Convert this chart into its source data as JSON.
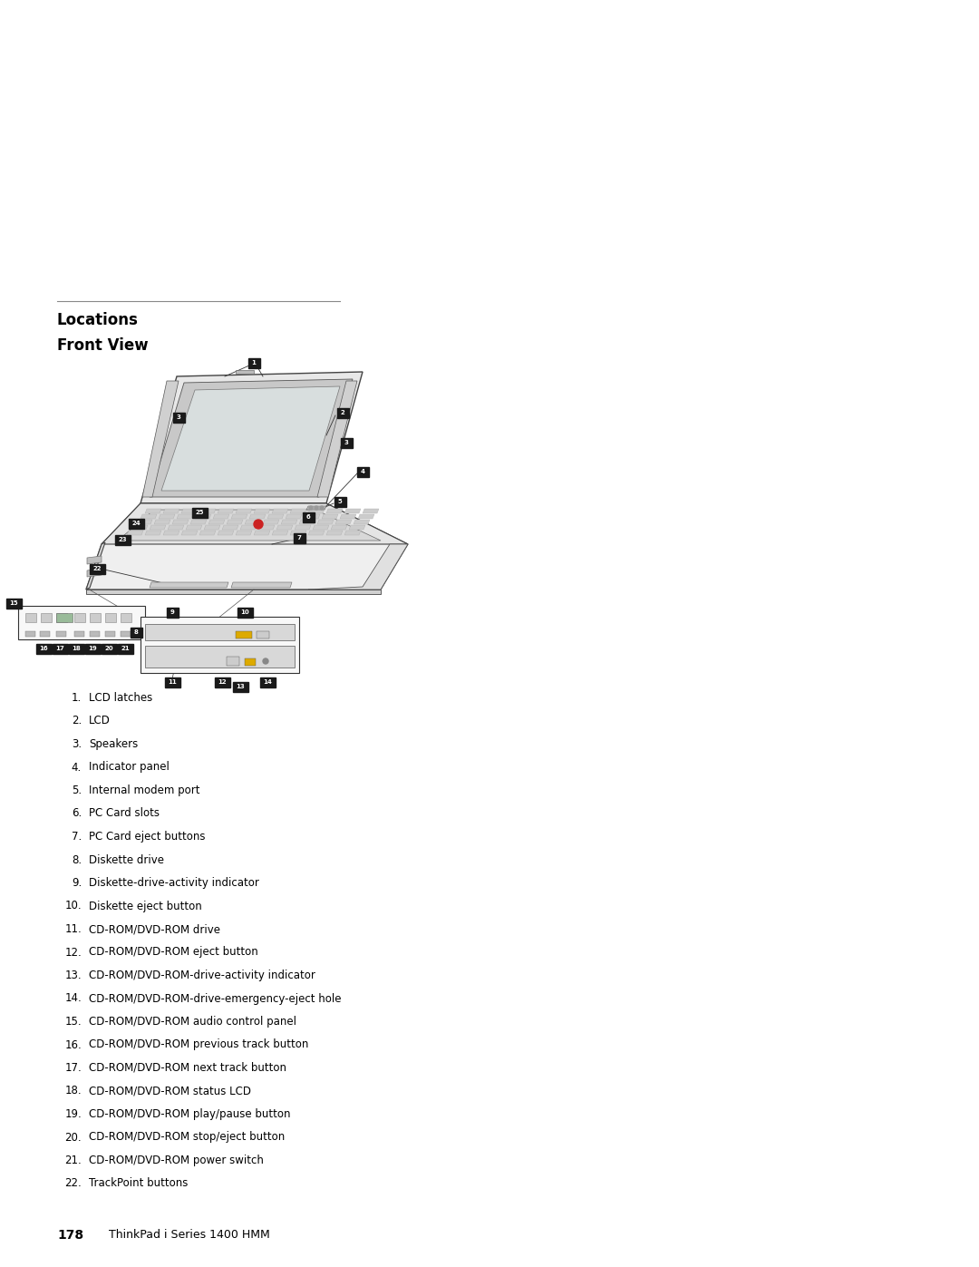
{
  "bg_color": "#ffffff",
  "page_width": 10.8,
  "page_height": 13.97,
  "locations_title": "Locations",
  "front_view_title": "Front View",
  "items": [
    {
      "num": 1,
      "text": "LCD latches"
    },
    {
      "num": 2,
      "text": "LCD"
    },
    {
      "num": 3,
      "text": "Speakers"
    },
    {
      "num": 4,
      "text": "Indicator panel"
    },
    {
      "num": 5,
      "text": "Internal modem port"
    },
    {
      "num": 6,
      "text": "PC Card slots"
    },
    {
      "num": 7,
      "text": "PC Card eject buttons"
    },
    {
      "num": 8,
      "text": "Diskette drive"
    },
    {
      "num": 9,
      "text": "Diskette-drive-activity indicator"
    },
    {
      "num": 10,
      "text": "Diskette eject button"
    },
    {
      "num": 11,
      "text": "CD-ROM/DVD-ROM drive"
    },
    {
      "num": 12,
      "text": "CD-ROM/DVD-ROM eject button"
    },
    {
      "num": 13,
      "text": "CD-ROM/DVD-ROM-drive-activity indicator"
    },
    {
      "num": 14,
      "text": "CD-ROM/DVD-ROM-drive-emergency-eject hole"
    },
    {
      "num": 15,
      "text": "CD-ROM/DVD-ROM audio control panel"
    },
    {
      "num": 16,
      "text": "CD-ROM/DVD-ROM previous track button"
    },
    {
      "num": 17,
      "text": "CD-ROM/DVD-ROM next track button"
    },
    {
      "num": 18,
      "text": "CD-ROM/DVD-ROM status LCD"
    },
    {
      "num": 19,
      "text": "CD-ROM/DVD-ROM play/pause button"
    },
    {
      "num": 20,
      "text": "CD-ROM/DVD-ROM stop/eject button"
    },
    {
      "num": 21,
      "text": "CD-ROM/DVD-ROM power switch"
    },
    {
      "num": 22,
      "text": "TrackPoint buttons"
    }
  ],
  "footer_num": "178",
  "footer_text": "ThinkPad i Series 1400 HMM",
  "label_bg": "#1a1a1a",
  "label_fg": "#ffffff",
  "label_fontsize": 5.0,
  "item_fontsize": 8.5,
  "title_fontsize": 12,
  "subtitle_fontsize": 12
}
